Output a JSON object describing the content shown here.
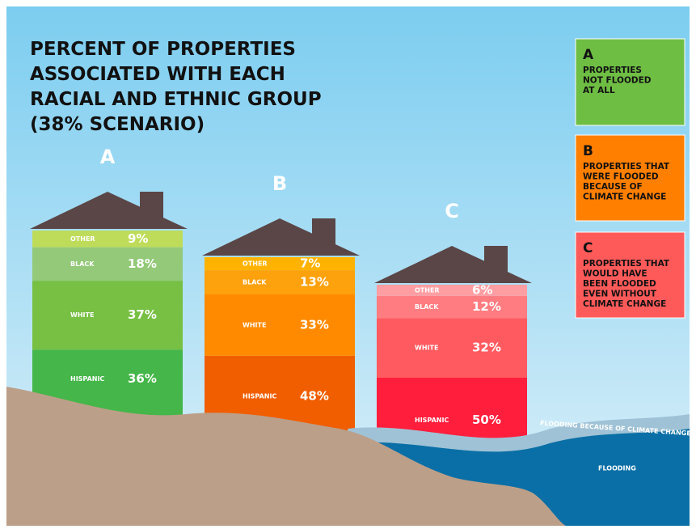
{
  "chart_data": {
    "type": "bar",
    "stacked": true,
    "title": [
      "PERCENT OF PROPERTIES",
      "ASSOCIATED WITH EACH",
      "RACIAL AND ETHNIC GROUP",
      "(38% SCENARIO)"
    ],
    "categories": [
      "A",
      "B",
      "C"
    ],
    "series": [
      {
        "name": "HISPANIC",
        "colors": [
          "#45b649",
          "#f05e00",
          "#ff1e3c"
        ],
        "values": [
          36,
          48,
          50
        ],
        "value_labels": [
          "36%",
          "48%",
          "50%"
        ]
      },
      {
        "name": "WHITE",
        "colors": [
          "#77c043",
          "#ff8a00",
          "#ff5a5f"
        ],
        "values": [
          37,
          33,
          32
        ],
        "value_labels": [
          "37%",
          "33%",
          "32%"
        ]
      },
      {
        "name": "BLACK",
        "colors": [
          "#93c978",
          "#fda10c",
          "#ff7c80"
        ],
        "values": [
          18,
          13,
          12
        ],
        "value_labels": [
          "18%",
          "13%",
          "12%"
        ]
      },
      {
        "name": "OTHER",
        "colors": [
          "#bedc5a",
          "#ffb300",
          "#ff9ea2"
        ],
        "values": [
          9,
          7,
          6
        ],
        "value_labels": [
          "9%",
          "7%",
          "6%"
        ]
      }
    ],
    "legend": [
      {
        "letter": "A",
        "lines": [
          "PROPERTIES",
          "NOT FLOODED",
          "AT ALL"
        ],
        "color": "#6fbe44"
      },
      {
        "letter": "B",
        "lines": [
          "PROPERTIES THAT",
          "WERE FLOODED",
          "BECAUSE OF",
          "CLIMATE CHANGE"
        ],
        "color": "#ff7f00"
      },
      {
        "letter": "C",
        "lines": [
          "PROPERTIES THAT",
          "WOULD HAVE",
          "BEEN FLOODED",
          "EVEN WITHOUT",
          "CLIMATE CHANGE"
        ],
        "color": "#ff5a5a"
      }
    ],
    "annotations": [
      "FLOODING BECAUSE OF CLIMATE CHANGE",
      "FLOODING"
    ]
  }
}
